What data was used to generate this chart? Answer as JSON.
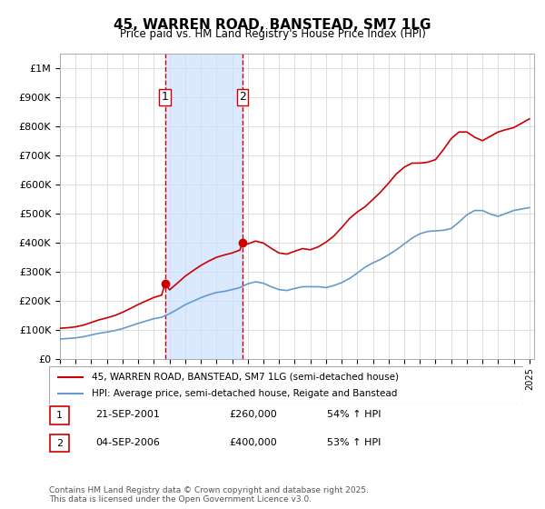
{
  "title": "45, WARREN ROAD, BANSTEAD, SM7 1LG",
  "subtitle": "Price paid vs. HM Land Registry's House Price Index (HPI)",
  "ylim": [
    0,
    1050000
  ],
  "yticks": [
    0,
    100000,
    200000,
    300000,
    400000,
    500000,
    600000,
    700000,
    800000,
    900000,
    1000000
  ],
  "ytick_labels": [
    "£0",
    "£100K",
    "£200K",
    "£300K",
    "£400K",
    "£500K",
    "£600K",
    "£700K",
    "£800K",
    "£900K",
    "£1M"
  ],
  "red_color": "#cc0000",
  "blue_color": "#6699cc",
  "shade_color": "#cce0ff",
  "grid_color": "#dddddd",
  "purchase1_year": 2001.72,
  "purchase1_price": 260000,
  "purchase1_label": "1",
  "purchase2_year": 2006.67,
  "purchase2_price": 400000,
  "purchase2_label": "2",
  "legend_line1": "45, WARREN ROAD, BANSTEAD, SM7 1LG (semi-detached house)",
  "legend_line2": "HPI: Average price, semi-detached house, Reigate and Banstead",
  "table_row1": [
    "1",
    "21-SEP-2001",
    "£260,000",
    "54% ↑ HPI"
  ],
  "table_row2": [
    "2",
    "04-SEP-2006",
    "£400,000",
    "53% ↑ HPI"
  ],
  "footnote": "Contains HM Land Registry data © Crown copyright and database right 2025.\nThis data is licensed under the Open Government Licence v3.0.",
  "hpi_years": [
    1995,
    1995.5,
    1996,
    1996.5,
    1997,
    1997.5,
    1998,
    1998.5,
    1999,
    1999.5,
    2000,
    2000.5,
    2001,
    2001.5,
    2002,
    2002.5,
    2003,
    2003.5,
    2004,
    2004.5,
    2005,
    2005.5,
    2006,
    2006.5,
    2007,
    2007.5,
    2008,
    2008.5,
    2009,
    2009.5,
    2010,
    2010.5,
    2011,
    2011.5,
    2012,
    2012.5,
    2013,
    2013.5,
    2014,
    2014.5,
    2015,
    2015.5,
    2016,
    2016.5,
    2017,
    2017.5,
    2018,
    2018.5,
    2019,
    2019.5,
    2020,
    2020.5,
    2021,
    2021.5,
    2022,
    2022.5,
    2023,
    2023.5,
    2024,
    2024.5,
    2025
  ],
  "hpi_values": [
    68000,
    70000,
    72000,
    76000,
    82000,
    88000,
    92000,
    97000,
    104000,
    113000,
    122000,
    130000,
    138000,
    143000,
    155000,
    170000,
    186000,
    198000,
    210000,
    220000,
    228000,
    232000,
    238000,
    245000,
    258000,
    265000,
    260000,
    248000,
    238000,
    235000,
    242000,
    248000,
    248000,
    248000,
    245000,
    252000,
    262000,
    276000,
    295000,
    315000,
    330000,
    342000,
    358000,
    375000,
    395000,
    415000,
    430000,
    438000,
    440000,
    442000,
    448000,
    470000,
    495000,
    510000,
    510000,
    498000,
    490000,
    500000,
    510000,
    515000,
    520000
  ],
  "red_years": [
    1995,
    1995.5,
    1996,
    1996.5,
    1997,
    1997.5,
    1998,
    1998.5,
    1999,
    1999.5,
    2000,
    2000.5,
    2001,
    2001.5,
    2001.72,
    2002,
    2002.5,
    2003,
    2003.5,
    2004,
    2004.5,
    2005,
    2005.5,
    2006,
    2006.5,
    2006.67,
    2007,
    2007.5,
    2008,
    2008.5,
    2009,
    2009.5,
    2010,
    2010.5,
    2011,
    2011.5,
    2012,
    2012.5,
    2013,
    2013.5,
    2014,
    2014.5,
    2015,
    2015.5,
    2016,
    2016.5,
    2017,
    2017.5,
    2018,
    2018.5,
    2019,
    2019.5,
    2020,
    2020.5,
    2021,
    2021.5,
    2022,
    2022.5,
    2023,
    2023.5,
    2024,
    2024.5,
    2025
  ],
  "red_values": [
    105000,
    107000,
    110000,
    116000,
    125000,
    134000,
    141000,
    149000,
    160000,
    173000,
    187000,
    199000,
    211000,
    219000,
    260000,
    237000,
    260000,
    284000,
    303000,
    321000,
    336000,
    349000,
    357000,
    364000,
    374000,
    400000,
    395000,
    405000,
    398000,
    380000,
    364000,
    360000,
    370000,
    379000,
    375000,
    385000,
    401000,
    422000,
    451000,
    482000,
    505000,
    523000,
    548000,
    574000,
    604000,
    636000,
    659000,
    673000,
    673000,
    676000,
    685000,
    719000,
    757000,
    780000,
    780000,
    762000,
    750000,
    765000,
    780000,
    788000,
    795000,
    810000,
    825000
  ]
}
